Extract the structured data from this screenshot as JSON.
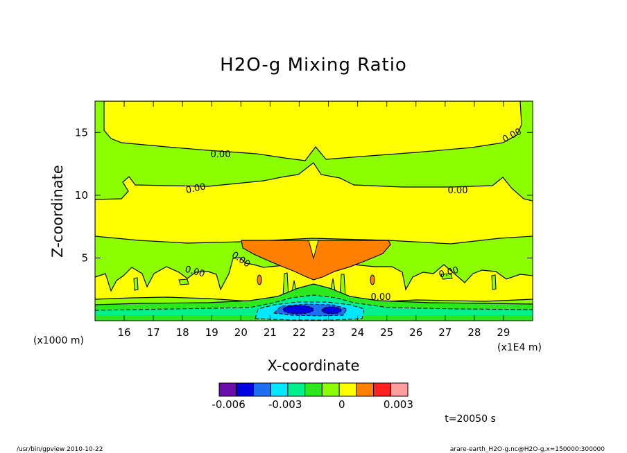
{
  "chart_data": {
    "type": "heatmap",
    "title": "H2O-g Mixing Ratio",
    "xlabel": "X-coordinate",
    "ylabel": "Z-coordinate",
    "x_unit_label": "(x1E4 m)",
    "y_unit_label": "(x1000 m)",
    "x_ticks": [
      16,
      17,
      18,
      19,
      20,
      21,
      22,
      23,
      24,
      25,
      26,
      27,
      28,
      29
    ],
    "y_ticks": [
      5,
      10,
      15
    ],
    "xlim": [
      15.0,
      30.0
    ],
    "ylim": [
      0.0,
      17.5
    ],
    "contour_labels": [
      "0.00",
      "0.00",
      "0.00",
      "0.00",
      "0.00",
      "0.00",
      "0.00",
      "0.00"
    ],
    "colorbar": {
      "colors": [
        "#6a0daa",
        "#0000e0",
        "#1e6ef0",
        "#00e8ff",
        "#00f08c",
        "#2ee81e",
        "#8cff00",
        "#ffff00",
        "#ff7f00",
        "#ff2020",
        "#ff9e9e"
      ],
      "tick_labels": [
        "-0.006",
        "-0.003",
        "0",
        "0.003"
      ],
      "tick_values": [
        -0.006,
        -0.003,
        0,
        0.003
      ],
      "range": [
        -0.0065,
        0.0035
      ]
    },
    "time_label": "t=20050 s",
    "grid": false,
    "legend": "colorbar-bottom"
  },
  "footer": {
    "left": "/usr/bin/gpview  2010-10-22",
    "right": "arare-earth_H2O-g.nc@H2O-g,x=150000:300000"
  }
}
